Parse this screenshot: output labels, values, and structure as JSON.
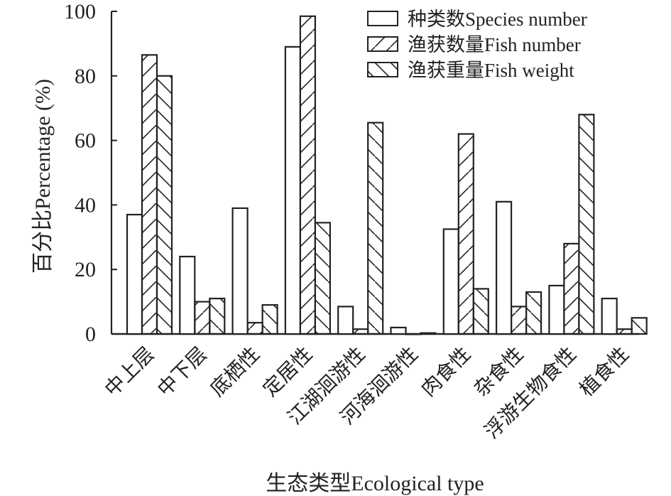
{
  "chart_data": {
    "type": "bar",
    "title": "",
    "xlabel": "生态类型Ecological type",
    "ylabel": "百分比Percentage (%)",
    "ylim": [
      0,
      100
    ],
    "yticks": [
      0,
      20,
      40,
      60,
      80,
      100
    ],
    "grid": false,
    "legend_position": "top-right",
    "categories": [
      "中上层",
      "中下层",
      "底栖性",
      "定居性",
      "江湖洄游性",
      "河海洄游性",
      "肉食性",
      "杂食性",
      "浮游生物食性",
      "植食性"
    ],
    "series": [
      {
        "name": "种类数Species number",
        "pattern": "none",
        "values": [
          37,
          24,
          39,
          89,
          8.5,
          2,
          32.5,
          41,
          15,
          11
        ]
      },
      {
        "name": "渔获数量Fish number",
        "pattern": "forward-hatch",
        "values": [
          86.5,
          10,
          3.5,
          98.5,
          1.5,
          0,
          62,
          8.5,
          28,
          1.5
        ]
      },
      {
        "name": "渔获重量Fish weight",
        "pattern": "back-hatch",
        "values": [
          80,
          11,
          9,
          34.5,
          65.5,
          0.3,
          14,
          13,
          68,
          5
        ]
      }
    ],
    "colors": {
      "stroke": "#222222",
      "fill": "#ffffff"
    }
  }
}
